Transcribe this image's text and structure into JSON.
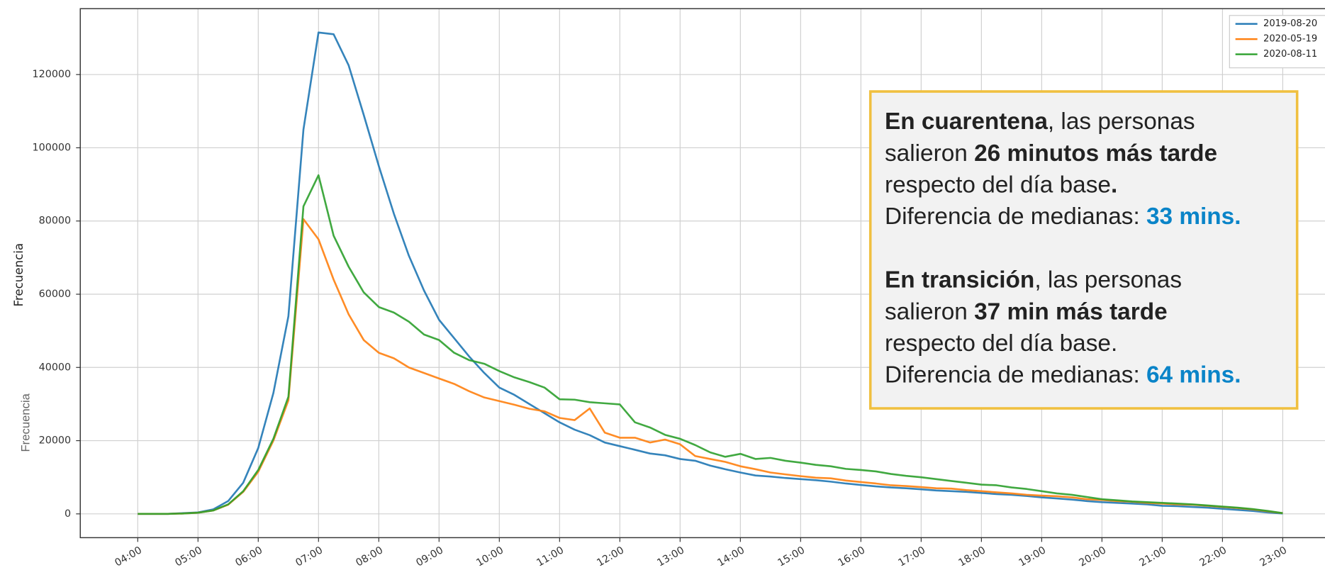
{
  "chart_data": {
    "type": "line",
    "y_label": "Frecuencia",
    "y_label_secondary": "Frecuencia",
    "categories": [
      "04:00",
      null,
      null,
      null,
      "05:00",
      null,
      null,
      null,
      "06:00",
      null,
      null,
      null,
      "07:00",
      null,
      null,
      null,
      "08:00",
      null,
      null,
      null,
      "09:00",
      null,
      null,
      null,
      "10:00",
      null,
      null,
      null,
      "11:00",
      null,
      null,
      null,
      "12:00",
      null,
      null,
      null,
      "13:00",
      null,
      null,
      null,
      "14:00",
      null,
      null,
      null,
      "15:00",
      null,
      null,
      null,
      "16:00",
      null,
      null,
      null,
      "17:00",
      null,
      null,
      null,
      "18:00",
      null,
      null,
      null,
      "19:00",
      null,
      null,
      null,
      "20:00",
      null,
      null,
      null,
      "21:00",
      null,
      null,
      null,
      "22:00",
      null,
      null,
      null,
      "23:00"
    ],
    "series": [
      {
        "name": "2019-08-20",
        "color": "#1f77b4",
        "values": [
          0,
          0,
          0,
          200,
          400,
          1200,
          3500,
          8500,
          18000,
          33000,
          54000,
          105000,
          131500,
          131000,
          122500,
          109000,
          95000,
          82000,
          70500,
          61000,
          53000,
          48000,
          43000,
          38500,
          34500,
          32500,
          30000,
          27500,
          25000,
          23000,
          21500,
          19500,
          18500,
          17500,
          16500,
          16000,
          15000,
          14500,
          13200,
          12200,
          11300,
          10500,
          10200,
          9800,
          9500,
          9200,
          8800,
          8300,
          7900,
          7500,
          7200,
          7000,
          6700,
          6400,
          6200,
          6000,
          5700,
          5400,
          5200,
          4900,
          4500,
          4200,
          3900,
          3500,
          3200,
          3000,
          2800,
          2600,
          2200,
          2100,
          1900,
          1700,
          1400,
          1100,
          800,
          400,
          100
        ]
      },
      {
        "name": "2020-05-19",
        "color": "#ff7f0e",
        "values": [
          0,
          0,
          0,
          100,
          300,
          900,
          2500,
          6000,
          11500,
          20000,
          31000,
          80500,
          75000,
          64000,
          54500,
          47500,
          44000,
          42500,
          40000,
          38500,
          37000,
          35500,
          33500,
          31800,
          30800,
          29800,
          28700,
          28000,
          26200,
          25600,
          28800,
          22200,
          20800,
          20800,
          19500,
          20300,
          19000,
          15800,
          15000,
          14200,
          13000,
          12200,
          11300,
          10800,
          10300,
          9900,
          9700,
          9100,
          8700,
          8300,
          7800,
          7600,
          7300,
          7000,
          6900,
          6500,
          6200,
          5900,
          5600,
          5200,
          5000,
          4800,
          4500,
          4000,
          3800,
          3500,
          3300,
          3000,
          2800,
          2600,
          2500,
          2200,
          1900,
          1600,
          1200,
          700,
          200
        ]
      },
      {
        "name": "2020-08-11",
        "color": "#2ca02c",
        "values": [
          0,
          0,
          0,
          100,
          300,
          900,
          2600,
          6200,
          12000,
          20500,
          32000,
          84000,
          92500,
          76000,
          67500,
          60500,
          56500,
          55000,
          52500,
          49000,
          47500,
          44000,
          42000,
          41000,
          39000,
          37300,
          36000,
          34500,
          31300,
          31200,
          30500,
          30200,
          29900,
          25000,
          23600,
          21600,
          20500,
          18800,
          16800,
          15600,
          16400,
          15000,
          15300,
          14500,
          14000,
          13400,
          13000,
          12300,
          12000,
          11600,
          10900,
          10400,
          10000,
          9500,
          9000,
          8500,
          8000,
          7800,
          7200,
          6800,
          6200,
          5600,
          5200,
          4600,
          4000,
          3700,
          3400,
          3200,
          3000,
          2800,
          2600,
          2300,
          2000,
          1700,
          1300,
          800,
          200
        ]
      }
    ],
    "ylim": [
      -6500,
      138000
    ],
    "yticks": [
      0,
      20000,
      40000,
      60000,
      80000,
      100000,
      120000
    ],
    "grid": true,
    "legend": "upper right",
    "annotation": {
      "paragraphs": [
        [
          [
            {
              "text": "En cuarentena",
              "bold": true
            },
            {
              "text": ", las personas"
            }
          ],
          [
            {
              "text": "salieron "
            },
            {
              "text": "26 minutos más tarde",
              "bold": true
            }
          ],
          [
            {
              "text": "respecto del día base"
            },
            {
              "text": ".",
              "bold": true
            }
          ],
          [
            {
              "text": "Diferencia de medianas: "
            },
            {
              "text": "33 mins.",
              "bold": true,
              "color": "#0a84c8"
            }
          ]
        ],
        [
          [
            {
              "text": "En transición",
              "bold": true
            },
            {
              "text": ", las personas"
            }
          ],
          [
            {
              "text": "salieron "
            },
            {
              "text": "37 min más tarde",
              "bold": true
            }
          ],
          [
            {
              "text": "respecto del día base."
            }
          ],
          [
            {
              "text": "Diferencia de medianas: "
            },
            {
              "text": "64 mins.",
              "bold": true,
              "color": "#0a84c8"
            }
          ]
        ]
      ]
    }
  }
}
